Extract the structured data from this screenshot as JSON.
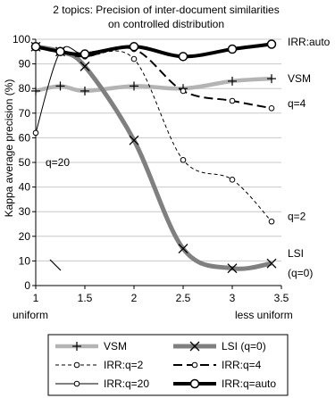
{
  "chart_data": {
    "type": "line",
    "title_lines": [
      "2 topics: Precision of inter-document similarities",
      "on controlled distribution"
    ],
    "ylabel": "Kappa average precision (%)",
    "xlabel": "",
    "xlim": [
      1,
      3.5
    ],
    "ylim": [
      0,
      100
    ],
    "x_ticks": [
      "1",
      "1.5",
      "2",
      "2.5",
      "3",
      "3.5"
    ],
    "y_ticks": [
      "0",
      "10",
      "20",
      "30",
      "40",
      "50",
      "60",
      "70",
      "80",
      "90",
      "100"
    ],
    "x_end_labels": {
      "left": "uniform",
      "right": "less uniform"
    },
    "grid": "horizontal",
    "series": [
      {
        "name": "VSM",
        "color": "#b4b4b4",
        "style": "plus",
        "x": [
          1,
          1.25,
          1.5,
          2,
          2.5,
          3,
          3.4
        ],
        "values": [
          79,
          81,
          79,
          81,
          80,
          83,
          84
        ]
      },
      {
        "name": "LSI (q=0)",
        "color": "#808080",
        "style": "x",
        "x": [
          1,
          1.25,
          1.5,
          2,
          2.5,
          3,
          3.4
        ],
        "values": [
          97,
          95,
          89,
          59,
          15,
          7,
          9
        ]
      },
      {
        "name": "IRR:q=2",
        "color": "#000000",
        "style": "dashed-circle",
        "x": [
          1,
          1.25,
          1.5,
          2,
          2.5,
          3,
          3.4
        ],
        "values": [
          97,
          95,
          93,
          92,
          51,
          43,
          26
        ]
      },
      {
        "name": "IRR:q=4",
        "color": "#000000",
        "style": "longdash-circle",
        "x": [
          1,
          1.25,
          1.5,
          2,
          2.5,
          3,
          3.4
        ],
        "values": [
          97,
          95,
          93,
          96,
          79,
          75,
          72
        ]
      },
      {
        "name": "IRR:q=20",
        "color": "#000000",
        "style": "thin-circle",
        "x": [
          1,
          1.25,
          1.5,
          2,
          2.5,
          3,
          3.4
        ],
        "values": [
          62,
          95,
          94,
          97,
          93,
          96,
          98
        ]
      },
      {
        "name": "IRR:q=auto",
        "color": "#000000",
        "style": "thick-circle",
        "x": [
          1,
          1.25,
          1.5,
          2,
          2.5,
          3,
          3.4
        ],
        "values": [
          97,
          95,
          94,
          97,
          93,
          96,
          98
        ]
      }
    ],
    "annotations": [
      {
        "text": "IRR:auto",
        "x": 3.45,
        "y": 99
      },
      {
        "text": "VSM",
        "x": 3.45,
        "y": 84
      },
      {
        "text": "q=4",
        "x": 3.45,
        "y": 74
      },
      {
        "text": "q=2",
        "x": 3.45,
        "y": 28
      },
      {
        "text": "LSI",
        "x": 3.45,
        "y": 13
      },
      {
        "text": "(q=0)",
        "x": 3.45,
        "y": 5
      },
      {
        "text": "q=20",
        "x": 1.1,
        "y": 50
      }
    ],
    "legend": {
      "placement": "bottom",
      "entries": [
        "VSM",
        "LSI (q=0)",
        "IRR:q=2",
        "IRR:q=4",
        "IRR:q=20",
        "IRR:q=auto"
      ]
    }
  }
}
